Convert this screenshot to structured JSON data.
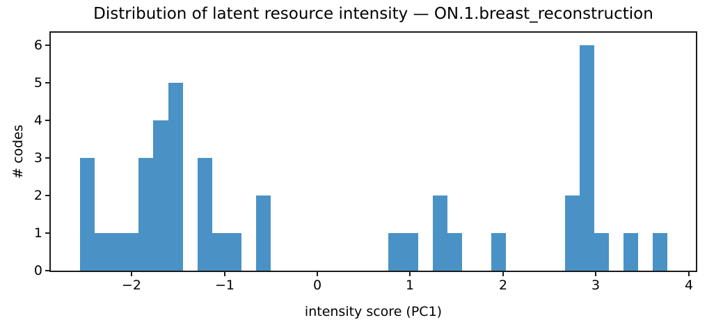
{
  "chart_data": {
    "type": "bar",
    "subtype": "histogram",
    "title": "Distribution of latent resource intensity — ON.1.breast_reconstruction",
    "xlabel": "intensity score (PC1)",
    "ylabel": "# codes",
    "bin_start": -2.558,
    "bin_width": 0.1583,
    "n_bins": 40,
    "counts": [
      3,
      1,
      1,
      1,
      3,
      4,
      5,
      0,
      3,
      1,
      1,
      0,
      2,
      0,
      0,
      0,
      0,
      0,
      0,
      0,
      0,
      1,
      1,
      0,
      2,
      1,
      0,
      0,
      1,
      0,
      0,
      0,
      0,
      2,
      6,
      1,
      0,
      1,
      0,
      1
    ],
    "total_count": 42,
    "xlim": [
      -2.872,
      4.078
    ],
    "ylim": [
      0,
      6.333
    ],
    "xticks": [
      -2,
      -1,
      0,
      1,
      2,
      3,
      4
    ],
    "xtick_labels": [
      "−2",
      "−1",
      "0",
      "1",
      "2",
      "3",
      "4"
    ],
    "yticks": [
      0,
      1,
      2,
      3,
      4,
      5,
      6
    ],
    "ytick_labels": [
      "0",
      "1",
      "2",
      "3",
      "4",
      "5",
      "6"
    ],
    "grid": false,
    "legend_position": "none",
    "bar_color": "#4a92c6",
    "axis_color": "#1a1a1a",
    "text_color": "#000000",
    "background_color": "#ffffff"
  }
}
